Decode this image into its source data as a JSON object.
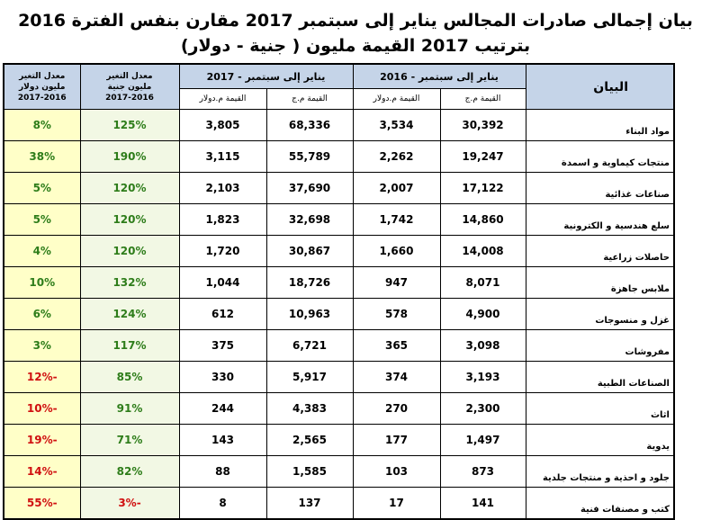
{
  "header": {
    "title": "بيان إجمالى صادرات المجالس يناير إلى سبتمبر 2017 مقارن بنفس الفترة 2016",
    "subtitle": "بترتيب 2017 القيمة مليون ( جنية - دولار)"
  },
  "table": {
    "columns": {
      "name": "البيان",
      "period_2016": "يناير إلى سبتمبر - 2016",
      "period_2017": "يناير إلى سبتمبر - 2017",
      "value_egp": "القيمة م.ج",
      "value_usd": "القيمة م.دولار",
      "change_egp": [
        "معدل التغير",
        "مليون جنية",
        "2017-2016"
      ],
      "change_usd": [
        "معدل التغير",
        "مليون دولار",
        "2017-2016"
      ]
    },
    "rows": [
      [
        "مواد البناء",
        "30,392",
        "3,534",
        "68,336",
        "3,805",
        "125%",
        "8%"
      ],
      [
        "منتجات كيماوية و اسمدة",
        "19,247",
        "2,262",
        "55,789",
        "3,115",
        "190%",
        "38%"
      ],
      [
        "صناعات غذائية",
        "17,122",
        "2,007",
        "37,690",
        "2,103",
        "120%",
        "5%"
      ],
      [
        "سلع هندسية و الكترونية",
        "14,860",
        "1,742",
        "32,698",
        "1,823",
        "120%",
        "5%"
      ],
      [
        "حاصلات زراعية",
        "14,008",
        "1,660",
        "30,867",
        "1,720",
        "120%",
        "4%"
      ],
      [
        "ملابس جاهزة",
        "8,071",
        "947",
        "18,726",
        "1,044",
        "132%",
        "10%"
      ],
      [
        "غزل و منسوجات",
        "4,900",
        "578",
        "10,963",
        "612",
        "124%",
        "6%"
      ],
      [
        "مفروشات",
        "3,098",
        "365",
        "6,721",
        "375",
        "117%",
        "3%"
      ],
      [
        "الصناعات الطبية",
        "3,193",
        "374",
        "5,917",
        "330",
        "85%",
        "-12%"
      ],
      [
        "اثاث",
        "2,300",
        "270",
        "4,383",
        "244",
        "91%",
        "-10%"
      ],
      [
        "يدوية",
        "1,497",
        "177",
        "2,565",
        "143",
        "71%",
        "-19%"
      ],
      [
        "جلود و احذية و منتجات جلدية",
        "873",
        "103",
        "1,585",
        "88",
        "82%",
        "-14%"
      ],
      [
        "كتب و مصنفات فنية",
        "141",
        "17",
        "137",
        "8",
        "-3%",
        "-55%"
      ]
    ]
  }
}
